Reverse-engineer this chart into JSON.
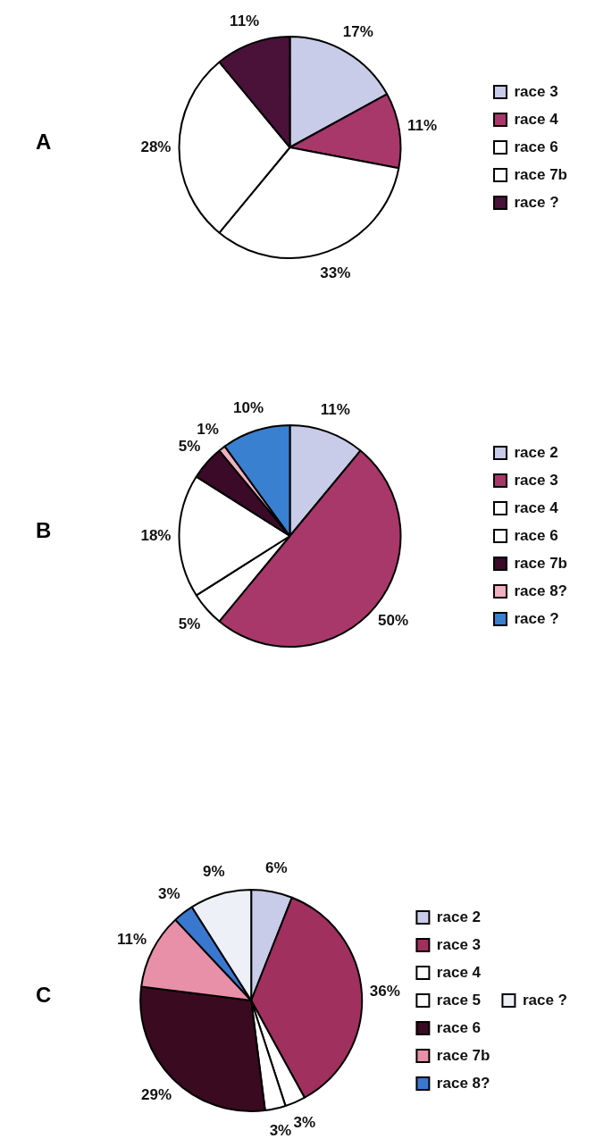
{
  "chart_data": [
    {
      "type": "pie",
      "title": "A",
      "categories": [
        "race 3",
        "race 4",
        "race 6",
        "race 7b",
        "race ?"
      ],
      "values": [
        17,
        11,
        33,
        28,
        11
      ],
      "value_labels": [
        "17%",
        "11%",
        "33%",
        "28%",
        "11%"
      ],
      "colors": [
        "#c8cce8",
        "#a8386a",
        "#ffffff",
        "#ffffff",
        "#4a1238"
      ],
      "legend": "right"
    },
    {
      "type": "pie",
      "title": "B",
      "categories": [
        "race 2",
        "race 3",
        "race 4",
        "race 6",
        "race 7b",
        "race 8?",
        "race ?"
      ],
      "values": [
        11,
        50,
        5,
        18,
        5,
        1,
        10
      ],
      "value_labels": [
        "11%",
        "50%",
        "5%",
        "18%",
        "5%",
        "1%",
        "10%"
      ],
      "colors": [
        "#c8cce8",
        "#a8386a",
        "#ffffff",
        "#ffffff",
        "#3a0a28",
        "#f0b0c0",
        "#3a80d0"
      ],
      "legend": "right"
    },
    {
      "type": "pie",
      "title": "C",
      "categories": [
        "race 2",
        "race 3",
        "race 4",
        "race 5",
        "race 6",
        "race 7b",
        "race 8?",
        "race ?"
      ],
      "values": [
        6,
        36,
        3,
        3,
        29,
        11,
        3,
        9
      ],
      "value_labels": [
        "6%",
        "36%",
        "3%",
        "3%",
        "29%",
        "11%",
        "3%",
        "9%"
      ],
      "colors": [
        "#c8cce8",
        "#a0305e",
        "#ffffff",
        "#ffffff",
        "#3a0a20",
        "#e890a8",
        "#3a78d0",
        "#eef0f8"
      ],
      "legend": "right"
    }
  ]
}
